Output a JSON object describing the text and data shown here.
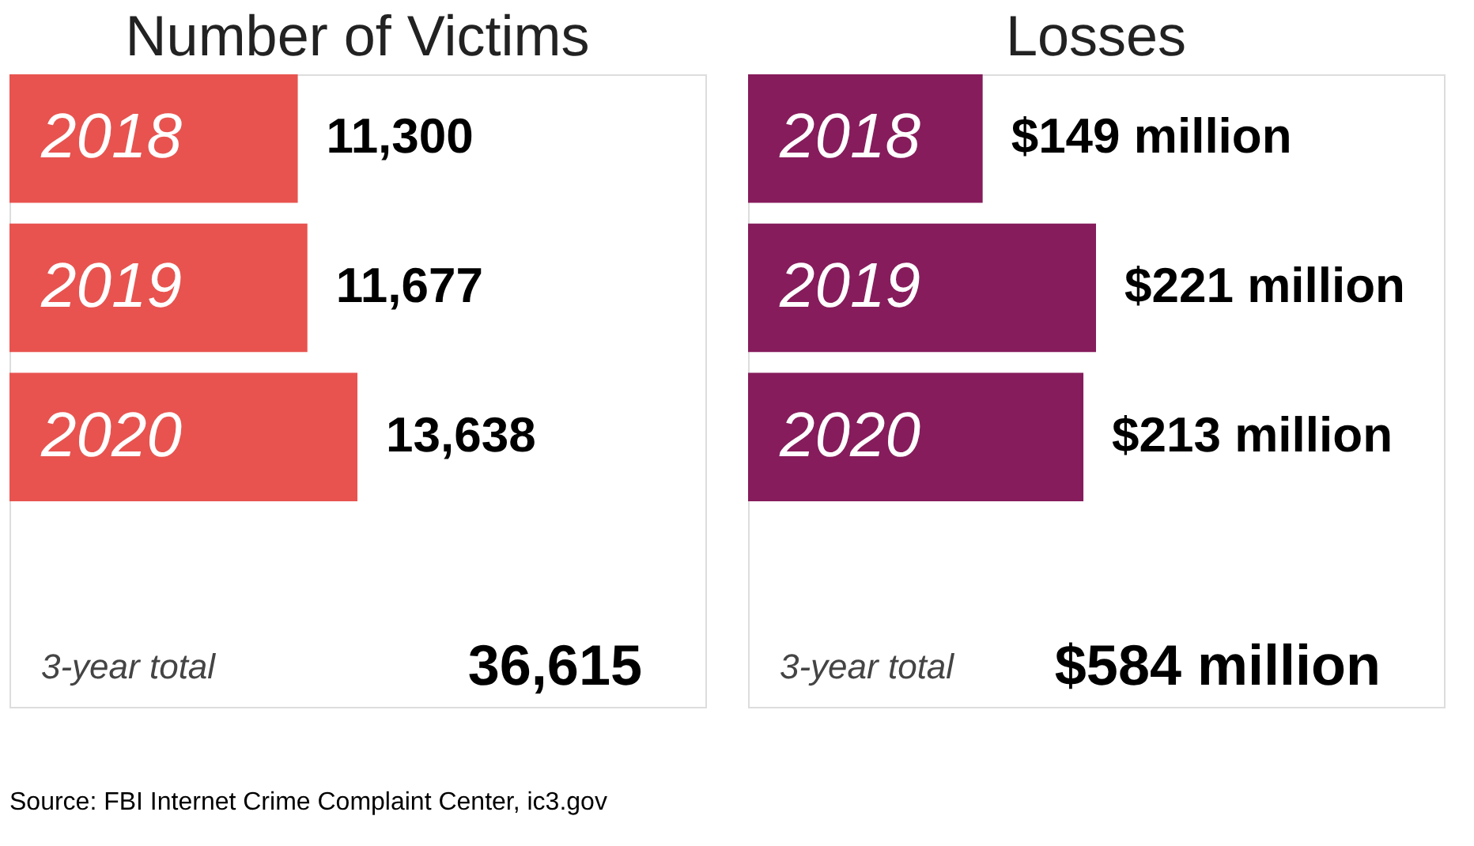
{
  "chart_data": [
    {
      "type": "bar",
      "orientation": "horizontal",
      "title": "Number of Victims",
      "categories": [
        "2018",
        "2019",
        "2020"
      ],
      "values": [
        11300,
        11677,
        13638
      ],
      "color": "#e8534f",
      "value_labels": [
        "11,300",
        "11,677",
        "13,638"
      ],
      "annotations": [
        "3-year total",
        "36,615",
        "Source: FBI Internet Crime Complaint Center, ic3.gov"
      ]
    },
    {
      "type": "bar",
      "orientation": "horizontal",
      "title": "Losses",
      "categories": [
        "2018",
        "2019",
        "2020"
      ],
      "values": [
        149,
        221,
        213
      ],
      "color": "#861c5c",
      "value_labels": [
        "$149 million",
        "$221 million",
        "$213 million"
      ],
      "annotations": [
        "3-year total",
        "$584 million"
      ]
    }
  ]
}
